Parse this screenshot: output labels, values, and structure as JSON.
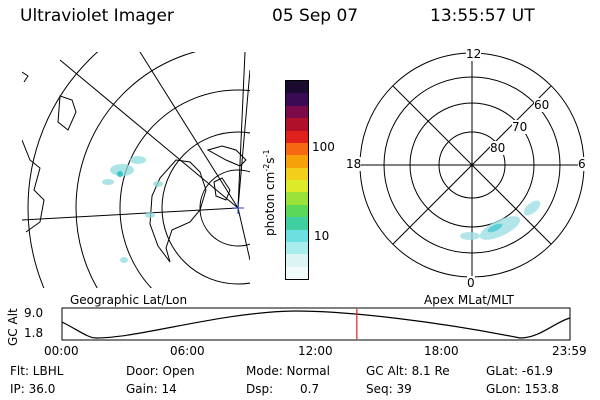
{
  "header": {
    "title": "Ultraviolet Imager",
    "date": "05 Sep 07",
    "time": "13:55:57 UT"
  },
  "colorbar": {
    "unit_label": "photon cm",
    "unit_exp1": "-2",
    "unit_s": "s",
    "unit_exp2": "-1",
    "ticks": [
      "100",
      "10"
    ],
    "colors": [
      "#1a0a30",
      "#3b0a55",
      "#7a0a4a",
      "#b0102a",
      "#e0201a",
      "#f56a10",
      "#f6a00a",
      "#f2cf1a",
      "#dcea2a",
      "#9ae23a",
      "#5ad85a",
      "#3fcfa0",
      "#6cdfe0",
      "#a8ecee",
      "#dcf4f4",
      "#f2fbfb"
    ]
  },
  "left_map": {
    "label": "Geographic Lat/Lon"
  },
  "right_map": {
    "label": "Apex MLat/MLT",
    "mlt_labels": [
      "12",
      "18",
      "6",
      "0"
    ],
    "lat_labels": [
      "60",
      "70",
      "80"
    ]
  },
  "altitude_plot": {
    "ylabel": "GC Alt",
    "y_ticks": [
      "9.0",
      "1.8"
    ],
    "x_ticks": [
      "00:00",
      "06:00",
      "12:00",
      "18:00",
      "23:59"
    ],
    "current_marker_hours": 13.93
  },
  "info": {
    "flt": "Flt: LBHL",
    "door": "Door: Open",
    "mode": "Mode: Normal",
    "gc_alt": "GC Alt: 8.1 Re",
    "glat": "GLat: -61.9",
    "ip": "IP: 36.0",
    "gain": "Gain: 14",
    "dsp_label": "Dsp:",
    "dsp_value": "0.7",
    "seq": "Seq: 39",
    "glon": "GLon: 153.8"
  }
}
